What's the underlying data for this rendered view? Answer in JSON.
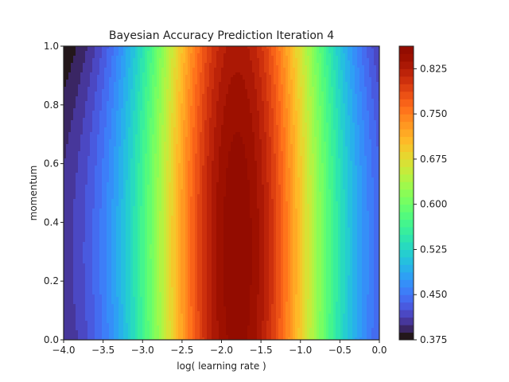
{
  "chart_data": {
    "type": "contourf",
    "title": "Bayesian Accuracy Prediction Iteration 4",
    "xlabel": "log( learning rate )",
    "ylabel": "momentum",
    "xlim": [
      -4.0,
      0.0
    ],
    "ylim": [
      0.0,
      1.0
    ],
    "x_ticks": [
      "−4.0",
      "−3.5",
      "−3.0",
      "−2.5",
      "−2.0",
      "−1.5",
      "−1.0",
      "−0.5",
      "0.0"
    ],
    "y_ticks": [
      "0.0",
      "0.2",
      "0.4",
      "0.6",
      "0.8",
      "1.0"
    ],
    "colormap": "turbo",
    "levels": [
      0.375,
      0.3875,
      0.4,
      0.4125,
      0.425,
      0.4375,
      0.45,
      0.4625,
      0.475,
      0.4875,
      0.5,
      0.5125,
      0.525,
      0.5375,
      0.55,
      0.5625,
      0.575,
      0.5875,
      0.6,
      0.6125,
      0.625,
      0.6375,
      0.65,
      0.6625,
      0.675,
      0.6875,
      0.7,
      0.7125,
      0.725,
      0.7375,
      0.75,
      0.7625,
      0.775,
      0.7875,
      0.8,
      0.8125,
      0.825,
      0.8375,
      0.85,
      0.8625
    ],
    "colorbar": {
      "min": 0.375,
      "max": 0.8625,
      "ticks": [
        "0.375",
        "0.450",
        "0.525",
        "0.600",
        "0.675",
        "0.750",
        "0.825"
      ],
      "tick_values": [
        0.375,
        0.45,
        0.525,
        0.6,
        0.675,
        0.75,
        0.825
      ]
    },
    "surface_peak": {
      "x": -1.8,
      "y": 0.3,
      "value": 0.86
    },
    "grid": false
  }
}
